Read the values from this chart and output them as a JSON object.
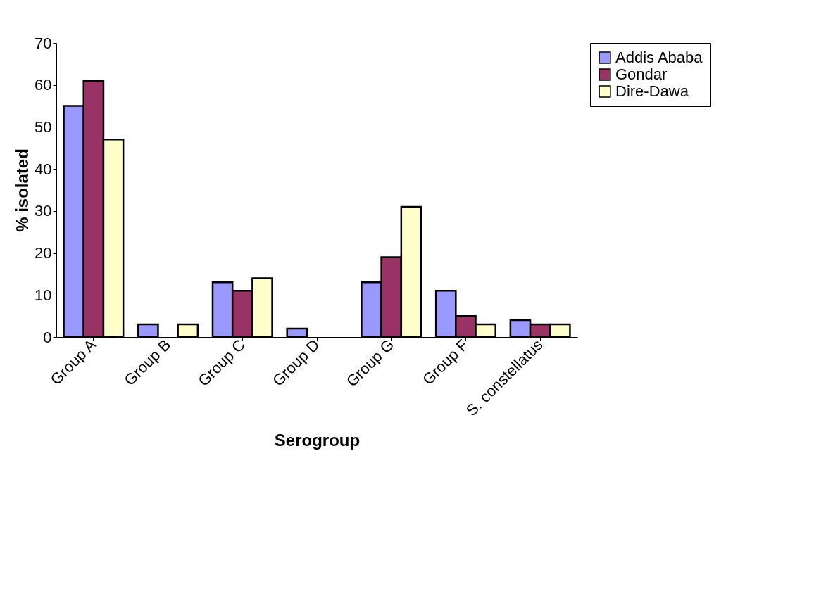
{
  "chart_data": {
    "type": "bar",
    "xlabel": "Serogroup",
    "ylabel": "% isolated",
    "categories": [
      "Group A",
      "Group B",
      "Group C",
      "Group D",
      "Group G",
      "Group F",
      "S. constellatus"
    ],
    "series": [
      {
        "name": "Addis Ababa",
        "color": "#9999ff",
        "values": [
          55,
          3,
          13,
          2,
          13,
          11,
          4
        ]
      },
      {
        "name": "Gondar",
        "color": "#993366",
        "values": [
          61,
          null,
          11,
          null,
          19,
          5,
          3
        ]
      },
      {
        "name": "Dire-Dawa",
        "color": "#ffffcc",
        "values": [
          47,
          3,
          14,
          null,
          31,
          3,
          3
        ]
      }
    ],
    "ylim": [
      0,
      70
    ],
    "yticks": [
      0,
      10,
      20,
      30,
      40,
      50,
      60,
      70
    ],
    "grid": false,
    "legend": "right"
  }
}
